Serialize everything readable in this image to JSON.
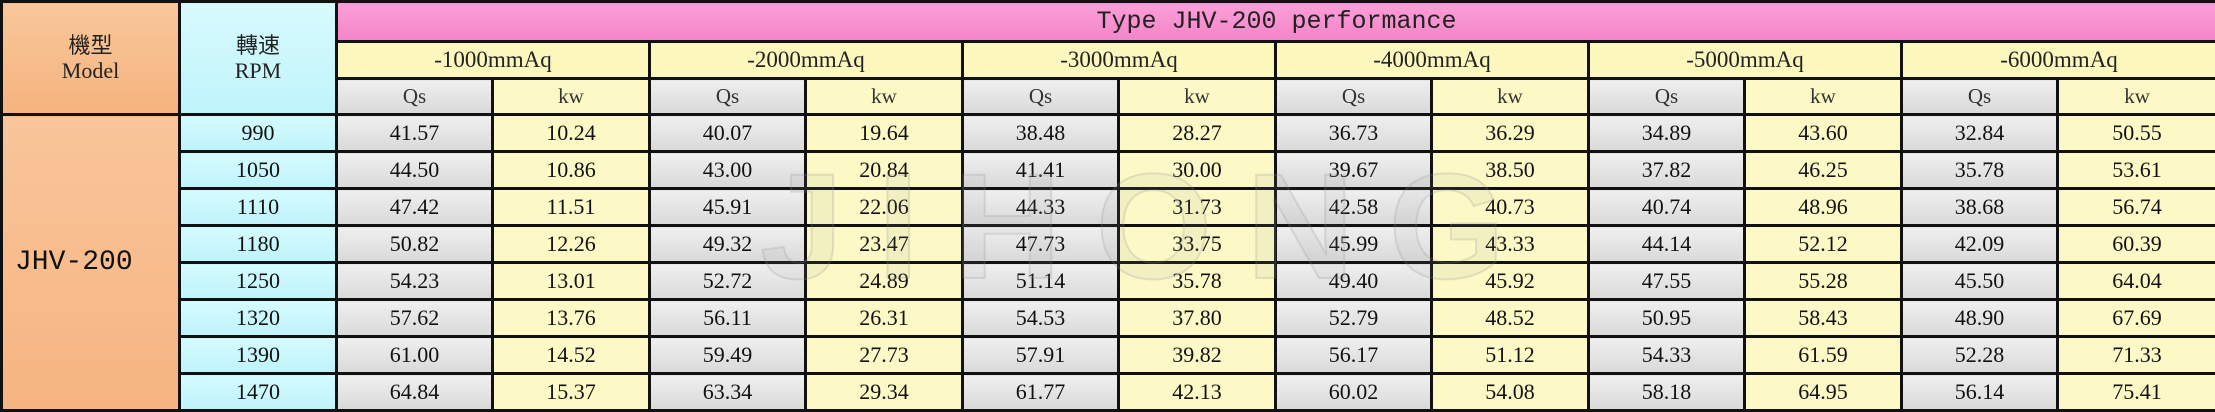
{
  "header": {
    "model_zh": "機型",
    "model_en": "Model",
    "rpm_zh": "轉速",
    "rpm_en": "RPM",
    "title": "Type JHV-200 performance"
  },
  "pressures": [
    "-1000mmAq",
    "-2000mmAq",
    "-3000mmAq",
    "-4000mmAq",
    "-5000mmAq",
    "-6000mmAq"
  ],
  "sub_headers": {
    "qs": "Qs",
    "kw": "kw"
  },
  "model_name": "JHV-200",
  "rows": [
    {
      "rpm": "990",
      "values": [
        "41.57",
        "10.24",
        "40.07",
        "19.64",
        "38.48",
        "28.27",
        "36.73",
        "36.29",
        "34.89",
        "43.60",
        "32.84",
        "50.55"
      ]
    },
    {
      "rpm": "1050",
      "values": [
        "44.50",
        "10.86",
        "43.00",
        "20.84",
        "41.41",
        "30.00",
        "39.67",
        "38.50",
        "37.82",
        "46.25",
        "35.78",
        "53.61"
      ]
    },
    {
      "rpm": "1110",
      "values": [
        "47.42",
        "11.51",
        "45.91",
        "22.06",
        "44.33",
        "31.73",
        "42.58",
        "40.73",
        "40.74",
        "48.96",
        "38.68",
        "56.74"
      ]
    },
    {
      "rpm": "1180",
      "values": [
        "50.82",
        "12.26",
        "49.32",
        "23.47",
        "47.73",
        "33.75",
        "45.99",
        "43.33",
        "44.14",
        "52.12",
        "42.09",
        "60.39"
      ]
    },
    {
      "rpm": "1250",
      "values": [
        "54.23",
        "13.01",
        "52.72",
        "24.89",
        "51.14",
        "35.78",
        "49.40",
        "45.92",
        "47.55",
        "55.28",
        "45.50",
        "64.04"
      ]
    },
    {
      "rpm": "1320",
      "values": [
        "57.62",
        "13.76",
        "56.11",
        "26.31",
        "54.53",
        "37.80",
        "52.79",
        "48.52",
        "50.95",
        "58.43",
        "48.90",
        "67.69"
      ]
    },
    {
      "rpm": "1390",
      "values": [
        "61.00",
        "14.52",
        "59.49",
        "27.73",
        "57.91",
        "39.82",
        "56.17",
        "51.12",
        "54.33",
        "61.59",
        "52.28",
        "71.33"
      ]
    },
    {
      "rpm": "1470",
      "values": [
        "64.84",
        "15.37",
        "63.34",
        "29.34",
        "61.77",
        "42.13",
        "60.02",
        "54.08",
        "58.18",
        "64.95",
        "56.14",
        "75.41"
      ]
    }
  ]
}
